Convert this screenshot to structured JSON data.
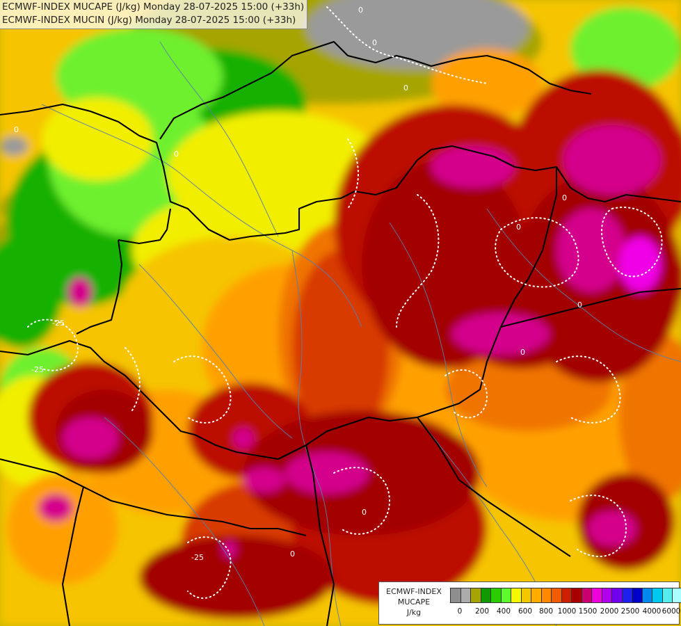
{
  "header": {
    "line1": "ECMWF-INDEX MUCAPE (J/kg) Monday 28-07-2025 15:00 (+33h)",
    "line2": "ECMWF-INDEX MUCIN (J/kg) Monday 28-07-2025 15:00 (+33h)"
  },
  "map": {
    "contour_labels": [
      "0",
      "0",
      "0",
      "0",
      "0",
      "0",
      "0",
      "0",
      "-25",
      "-25",
      "-25",
      "0",
      "0",
      "0"
    ]
  },
  "legend": {
    "title_lines": [
      "ECMWF-INDEX",
      "MUCAPE",
      "J/kg"
    ],
    "swatch_colors": [
      "#8e8e8e",
      "#acacac",
      "#a6a400",
      "#109a00",
      "#2ccd00",
      "#5efa2c",
      "#f6f800",
      "#f4c800",
      "#ffab00",
      "#ff8800",
      "#f25a00",
      "#cd2000",
      "#a80000",
      "#ca006e",
      "#ee00dd",
      "#b000ee",
      "#7000ee",
      "#2020ee",
      "#0000c8",
      "#0088ee",
      "#00c8ee",
      "#55eeee",
      "#aaffff",
      "#f8fcff"
    ],
    "tick_labels": [
      "0",
      "200",
      "400",
      "600",
      "800",
      "1000",
      "1500",
      "2000",
      "2500",
      "4000",
      "6000"
    ]
  },
  "colors": {
    "grey": "#9a9a9a",
    "olive": "#a6a400",
    "green": "#14b000",
    "lime": "#6ef02e",
    "yellow": "#f2ee00",
    "gold": "#f6c400",
    "orange": "#ffa000",
    "dark-orange": "#f07400",
    "red-orange": "#d83a00",
    "red": "#bb0c00",
    "crimson": "#a30000",
    "magenta": "#d4008c",
    "pink": "#f000e6"
  }
}
